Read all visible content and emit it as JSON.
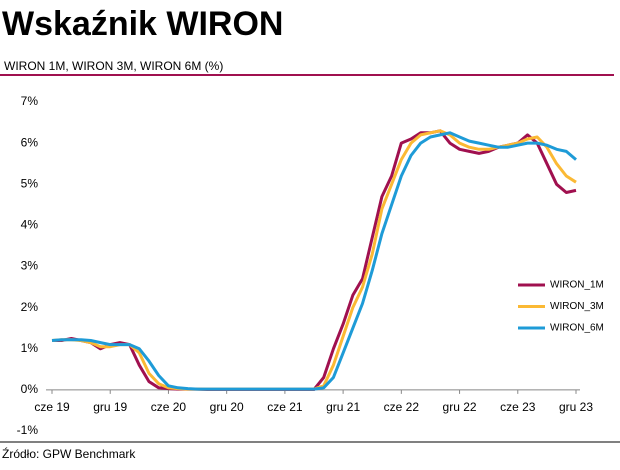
{
  "chart_data": {
    "type": "line",
    "title": "Wskaźnik WIRON",
    "subtitle": "WIRON 1M, WIRON 3M, WIRON 6M (%)",
    "source": "Źródło: GPW Benchmark",
    "categories": [
      "cze 19",
      null,
      null,
      null,
      null,
      null,
      "gru 19",
      null,
      null,
      null,
      null,
      null,
      "cze 20",
      null,
      null,
      null,
      null,
      null,
      "gru 20",
      null,
      null,
      null,
      null,
      null,
      "cze 21",
      null,
      null,
      null,
      null,
      null,
      "gru 21",
      null,
      null,
      null,
      null,
      null,
      "cze 22",
      null,
      null,
      null,
      null,
      null,
      "gru 22",
      null,
      null,
      null,
      null,
      null,
      "cze 23",
      null,
      null,
      null,
      null,
      null,
      "gru 23"
    ],
    "series": [
      {
        "name": "WIRON_1M",
        "color": "#a0104f",
        "values": [
          1.2,
          1.2,
          1.25,
          1.2,
          1.15,
          1.0,
          1.1,
          1.15,
          1.1,
          0.6,
          0.2,
          0.05,
          0.03,
          0.02,
          0.02,
          0.02,
          0.01,
          0.01,
          0.01,
          0.01,
          0.01,
          0.01,
          0.01,
          0.01,
          0.01,
          0.01,
          0.01,
          0.01,
          0.3,
          1.0,
          1.6,
          2.3,
          2.7,
          3.7,
          4.7,
          5.2,
          6.0,
          6.1,
          6.25,
          6.25,
          6.3,
          6.0,
          5.85,
          5.8,
          5.75,
          5.8,
          5.9,
          5.95,
          6.0,
          6.2,
          6.0,
          5.5,
          5.0,
          4.8,
          4.85
        ]
      },
      {
        "name": "WIRON_3M",
        "color": "#fbb934",
        "values": [
          1.2,
          1.22,
          1.22,
          1.2,
          1.15,
          1.05,
          1.05,
          1.1,
          1.1,
          0.9,
          0.4,
          0.15,
          0.05,
          0.03,
          0.02,
          0.02,
          0.02,
          0.02,
          0.02,
          0.02,
          0.02,
          0.02,
          0.02,
          0.02,
          0.02,
          0.02,
          0.02,
          0.02,
          0.1,
          0.6,
          1.3,
          2.0,
          2.5,
          3.3,
          4.4,
          5.0,
          5.6,
          6.0,
          6.2,
          6.25,
          6.3,
          6.2,
          6.0,
          5.9,
          5.85,
          5.85,
          5.9,
          5.95,
          6.0,
          6.1,
          6.15,
          5.9,
          5.5,
          5.2,
          5.05
        ]
      },
      {
        "name": "WIRON_6M",
        "color": "#1e9bd7",
        "values": [
          1.2,
          1.22,
          1.22,
          1.22,
          1.2,
          1.15,
          1.1,
          1.1,
          1.1,
          1.0,
          0.7,
          0.35,
          0.1,
          0.05,
          0.03,
          0.02,
          0.02,
          0.02,
          0.02,
          0.02,
          0.02,
          0.02,
          0.02,
          0.02,
          0.02,
          0.02,
          0.02,
          0.02,
          0.05,
          0.3,
          0.9,
          1.5,
          2.1,
          2.9,
          3.8,
          4.5,
          5.2,
          5.7,
          6.0,
          6.15,
          6.2,
          6.25,
          6.15,
          6.05,
          6.0,
          5.95,
          5.9,
          5.9,
          5.95,
          6.0,
          6.0,
          5.95,
          5.85,
          5.8,
          5.6
        ]
      }
    ],
    "ylim": [
      -1,
      7
    ],
    "yticks": [
      {
        "value": -1,
        "label": "-1%"
      },
      {
        "value": 0,
        "label": "0%"
      },
      {
        "value": 1,
        "label": "1%"
      },
      {
        "value": 2,
        "label": "2%"
      },
      {
        "value": 3,
        "label": "3%"
      },
      {
        "value": 4,
        "label": "4%"
      },
      {
        "value": 5,
        "label": "5%"
      },
      {
        "value": 6,
        "label": "6%"
      },
      {
        "value": 7,
        "label": "7%"
      }
    ],
    "grid": false
  }
}
